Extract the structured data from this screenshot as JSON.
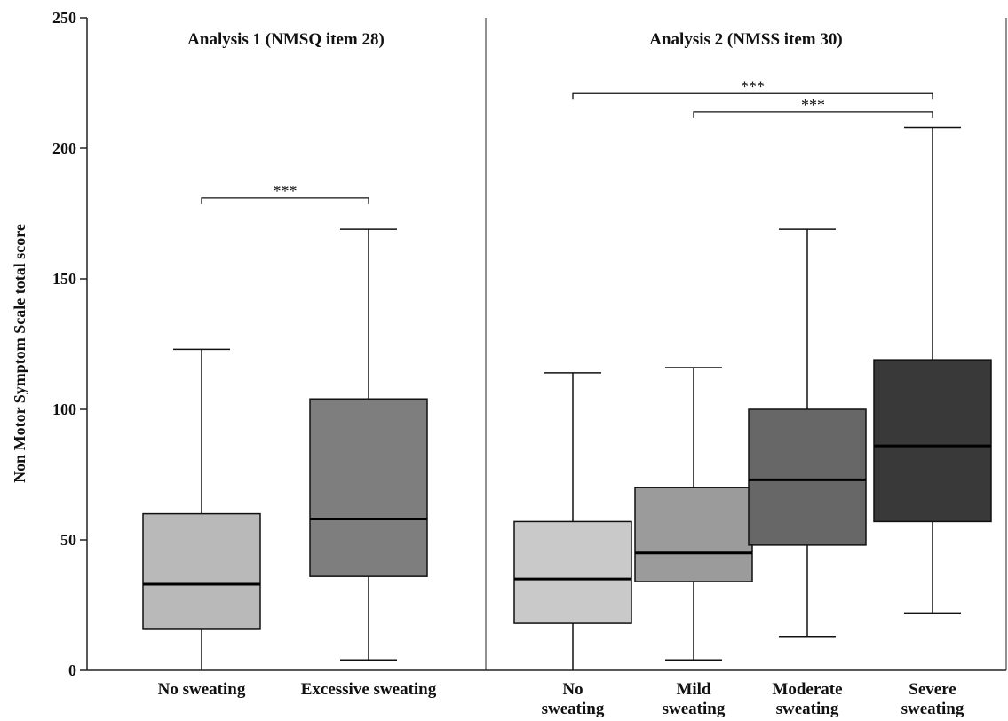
{
  "chart_data": {
    "type": "box",
    "ylabel": "Non Motor Symptom Scale total score",
    "ylim": [
      0,
      250
    ],
    "yticks": [
      0,
      50,
      100,
      150,
      200,
      250
    ],
    "grid": false,
    "panels": [
      {
        "title": "Analysis 1 (NMSQ item 28)",
        "groups": [
          {
            "label": [
              "No sweating"
            ],
            "min": 0,
            "q1": 16,
            "median": 33,
            "q3": 60,
            "max": 123,
            "color": "#b9b9b9"
          },
          {
            "label": [
              "Excessive sweating"
            ],
            "min": 4,
            "q1": 36,
            "median": 58,
            "q3": 104,
            "max": 169,
            "color": "#7e7e7e"
          }
        ],
        "significance": [
          {
            "from": 0,
            "to": 1,
            "y": 181,
            "text": "***"
          }
        ]
      },
      {
        "title": "Analysis 2 (NMSS item 30)",
        "groups": [
          {
            "label": [
              "No",
              "sweating"
            ],
            "min": 0,
            "q1": 18,
            "median": 35,
            "q3": 57,
            "max": 114,
            "color": "#c9c9c9"
          },
          {
            "label": [
              "Mild",
              "sweating"
            ],
            "min": 4,
            "q1": 34,
            "median": 45,
            "q3": 70,
            "max": 116,
            "color": "#9b9b9b"
          },
          {
            "label": [
              "Moderate",
              "sweating"
            ],
            "min": 13,
            "q1": 48,
            "median": 73,
            "q3": 100,
            "max": 169,
            "color": "#676767"
          },
          {
            "label": [
              "Severe",
              "sweating"
            ],
            "min": 22,
            "q1": 57,
            "median": 86,
            "q3": 119,
            "max": 208,
            "color": "#393939"
          }
        ],
        "significance": [
          {
            "from": 0,
            "to": 3,
            "y": 221,
            "text": "***"
          },
          {
            "from": 1,
            "to": 3,
            "y": 214,
            "text": "***"
          }
        ]
      }
    ]
  }
}
